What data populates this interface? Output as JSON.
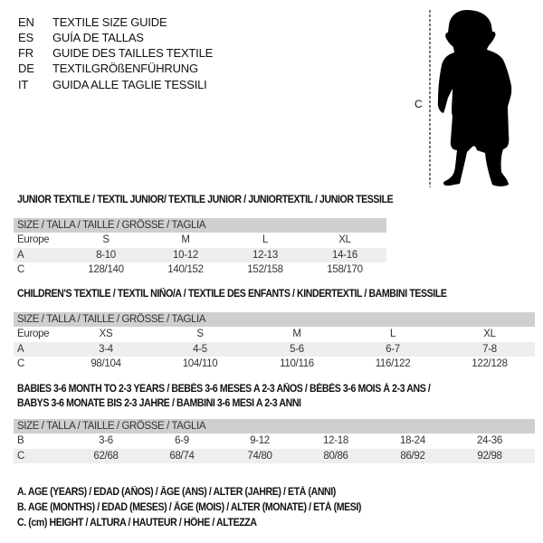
{
  "header": {
    "languages": [
      {
        "code": "EN",
        "text": "TEXTILE SIZE GUIDE"
      },
      {
        "code": "ES",
        "text": "GUÍA DE TALLAS"
      },
      {
        "code": "FR",
        "text": "GUIDE DES TAILLES TEXTILE"
      },
      {
        "code": "DE",
        "text": "TEXTILGRÖßENFÜHRUNG"
      },
      {
        "code": "IT",
        "text": "GUIDA ALLE TAGLIE TESSILI"
      }
    ],
    "figure_label": "C",
    "figure_icon": "child-silhouette-icon"
  },
  "sections": [
    {
      "title_lines": [
        "JUNIOR TEXTILE / TEXTIL JUNIOR/ TEXTILE JUNIOR / JUNIORTEXTIL / JUNIOR TESSILE"
      ],
      "header": "SIZE / TALLA / TAILLE / GRÖSSE / TAGLIA",
      "rows": [
        {
          "label": "Europe",
          "values": [
            "S",
            "M",
            "L",
            "XL"
          ]
        },
        {
          "label": "A",
          "values": [
            "8-10",
            "10-12",
            "12-13",
            "14-16"
          ]
        },
        {
          "label": "C",
          "values": [
            "128/140",
            "140/152",
            "152/158",
            "158/170"
          ]
        }
      ]
    },
    {
      "title_lines": [
        "CHILDREN'S TEXTILE / TEXTIL NIÑO/A / TEXTILE DES ENFANTS / KINDERTEXTIL / BAMBINI TESSILE"
      ],
      "header": "SIZE / TALLA / TAILLE / GRÖSSE / TAGLIA",
      "rows": [
        {
          "label": "Europe",
          "values": [
            "XS",
            "S",
            "M",
            "L",
            "XL"
          ]
        },
        {
          "label": "A",
          "values": [
            "3-4",
            "4-5",
            "5-6",
            "6-7",
            "7-8"
          ]
        },
        {
          "label": "C",
          "values": [
            "98/104",
            "104/110",
            "110/116",
            "116/122",
            "122/128"
          ]
        }
      ]
    },
    {
      "title_lines": [
        "BABIES 3-6 MONTH TO 2-3 YEARS / BEBÉS 3-6 MESES A 2-3 AÑOS / BÉBÉS 3-6 MOIS À 2-3 ANS /",
        "BABYS 3-6 MONATE BIS 2-3 JAHRE / BAMBINI 3-6 MESI A 2-3 ANNI"
      ],
      "header": "SIZE / TALLA / TAILLE / GRÖSSE / TAGLIA",
      "rows": [
        {
          "label": "B",
          "values": [
            "3-6",
            "6-9",
            "9-12",
            "12-18",
            "18-24",
            "24-36"
          ]
        },
        {
          "label": "C",
          "values": [
            "62/68",
            "68/74",
            "74/80",
            "80/86",
            "86/92",
            "92/98"
          ]
        }
      ]
    }
  ],
  "legend": [
    "A. AGE (YEARS) / EDAD (AÑOS) / ÂGE (ANS) / ALTER (JAHRE) / ETÀ (ANNI)",
    "B. AGE (MONTHS) / EDAD (MESES) / ÂGE (MOIS) / ALTER (MONATE) / ETÀ (MESI)",
    "C. (cm) HEIGHT / ALTURA / HAUTEUR / HÖHE / ALTEZZA"
  ],
  "colors": {
    "table_header": "#cfcfcf",
    "row_shade": "#eeeeee"
  }
}
